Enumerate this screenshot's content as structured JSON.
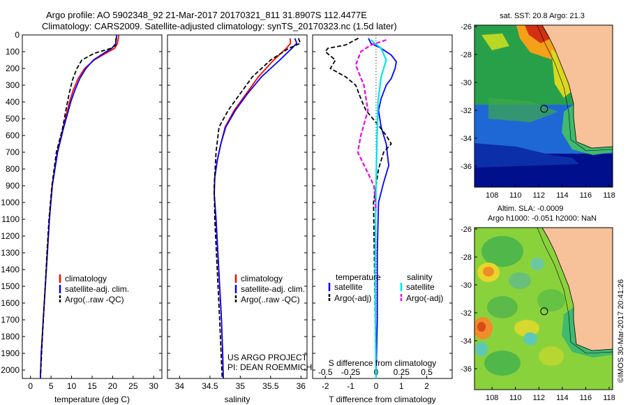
{
  "title": {
    "line1": "Argo profile: AO 5902348_92 21-Mar-2017 20170321_811 31.8907S 112.4477E",
    "line2": "Climatology: CARS2009. Satellite-adjusted climatology: synTS_20170323.nc (1.5d later)"
  },
  "colors": {
    "climatology": "#ff0000",
    "satellite": "#0000ff",
    "argo": "#000000",
    "salinity_satellite": "#00e5e5",
    "salinity_argo": "#ee00ee",
    "land": "#f7c29a",
    "sst_deep": "#000f8c"
  },
  "chart_data": [
    {
      "type": "line",
      "id": "temperature",
      "xlabel": "temperature (deg C)",
      "ylabel": "",
      "xlim": [
        -2,
        32
      ],
      "ylim": [
        2050,
        0
      ],
      "xticks": [
        0,
        5,
        10,
        15,
        20,
        25,
        30
      ],
      "yticks": [
        0,
        100,
        200,
        300,
        400,
        500,
        600,
        700,
        800,
        900,
        1000,
        1100,
        1200,
        1300,
        1400,
        1500,
        1600,
        1700,
        1800,
        1900,
        2000
      ],
      "legend": [
        "climatology",
        "satellite-adj. clim.",
        "Argo(..raw -QC)"
      ],
      "series": [
        {
          "name": "climatology",
          "x": [
            21.5,
            21.2,
            20.5,
            18.3,
            15.5,
            13.2,
            11.6,
            10.4,
            9.5,
            8.7,
            7.9,
            6.5,
            5.3,
            4.6,
            4.1,
            3.6,
            3.1,
            2.6,
            2.4
          ],
          "y": [
            0,
            50,
            80,
            110,
            150,
            200,
            260,
            330,
            400,
            480,
            560,
            700,
            900,
            1100,
            1300,
            1500,
            1700,
            1900,
            2050
          ]
        },
        {
          "name": "satellite-adj. clim.",
          "x": [
            21.0,
            20.8,
            19.8,
            17.8,
            15.3,
            13.5,
            12.0,
            10.8,
            9.8,
            8.9,
            8.0,
            6.6,
            5.3,
            4.6,
            4.1,
            3.6,
            3.1,
            2.6,
            2.4
          ],
          "y": [
            0,
            50,
            80,
            110,
            150,
            200,
            260,
            330,
            400,
            480,
            560,
            700,
            900,
            1100,
            1300,
            1500,
            1700,
            1900,
            2050
          ]
        },
        {
          "name": "Argo(..raw -QC)",
          "x": [
            20.8,
            20.8,
            19.6,
            15.5,
            12.5,
            11.3,
            10.2,
            9.4,
            8.6,
            7.8,
            6.3,
            5.2,
            4.5,
            4.0,
            3.6,
            3.1,
            2.7,
            2.4
          ],
          "y": [
            20,
            60,
            80,
            110,
            150,
            200,
            270,
            350,
            450,
            560,
            700,
            900,
            1100,
            1300,
            1500,
            1700,
            1900,
            2040
          ]
        }
      ]
    },
    {
      "type": "line",
      "id": "salinity",
      "xlabel": "salinity",
      "ylabel": "",
      "xlim": [
        33.8,
        36.1
      ],
      "ylim": [
        2050,
        0
      ],
      "xticks": [
        34,
        34.5,
        35,
        35.5,
        36
      ],
      "legend": [
        "climatology",
        "satellite-adj. clim.",
        "Argo(..raw -QC)"
      ],
      "annotation": [
        "US ARGO PROJECT",
        "PI: DEAN ROEMMICH"
      ],
      "series": [
        {
          "name": "climatology",
          "x": [
            35.82,
            35.83,
            35.76,
            35.55,
            35.3,
            35.1,
            34.9,
            34.75,
            34.68,
            34.62,
            34.58,
            34.57,
            34.6,
            34.63,
            34.66,
            34.69,
            34.71,
            34.72
          ],
          "y": [
            20,
            50,
            80,
            150,
            250,
            350,
            450,
            550,
            650,
            750,
            850,
            950,
            1100,
            1300,
            1500,
            1700,
            1900,
            2050
          ]
        },
        {
          "name": "satellite-adj. clim.",
          "x": [
            35.9,
            35.93,
            35.85,
            35.65,
            35.35,
            35.12,
            34.92,
            34.76,
            34.68,
            34.62,
            34.58,
            34.57,
            34.6,
            34.63,
            34.66,
            34.69,
            34.71,
            34.72
          ],
          "y": [
            20,
            50,
            80,
            150,
            250,
            350,
            450,
            550,
            650,
            750,
            850,
            950,
            1100,
            1300,
            1500,
            1700,
            1900,
            2050
          ]
        },
        {
          "name": "Argo(..raw -QC)",
          "x": [
            35.96,
            35.99,
            35.8,
            35.5,
            35.2,
            35.0,
            34.8,
            34.65,
            34.6,
            34.57,
            34.58,
            34.62,
            34.66,
            34.7
          ],
          "y": [
            20,
            50,
            80,
            150,
            250,
            350,
            450,
            550,
            700,
            900,
            1100,
            1400,
            1700,
            2040
          ]
        }
      ]
    },
    {
      "type": "line",
      "id": "difference",
      "xlabel": "T difference from climatology",
      "xlabel2": "S difference from climatology",
      "xlim": [
        -2.5,
        3.0
      ],
      "ylim": [
        2050,
        0
      ],
      "xticks": [
        -2,
        -1,
        0,
        1,
        2
      ],
      "xticks_s": [
        -0.5,
        -0.25,
        0,
        0.25,
        0.5
      ],
      "legend_headers": [
        "temperature",
        "salinity"
      ],
      "legend": [
        "satellite",
        "Argo(-adj)",
        "satellite",
        "Argo(-adj)"
      ],
      "series": [
        {
          "name": "temperature satellite",
          "x": [
            -0.3,
            -0.2,
            0.2,
            0.6,
            0.8,
            0.75,
            0.6,
            0.4,
            0.2,
            0.1,
            0.2,
            0.4,
            0.5,
            0.3,
            0.1,
            0.05,
            0.05,
            0.0
          ],
          "y": [
            20,
            50,
            80,
            120,
            160,
            200,
            260,
            300,
            380,
            450,
            550,
            650,
            780,
            880,
            1000,
            1300,
            1700,
            2050
          ]
        },
        {
          "name": "temperature Argo(-adj)",
          "x": [
            -0.7,
            -1.2,
            -1.9,
            -2.0,
            -1.6,
            -1.8,
            -1.2,
            -0.8,
            -0.6,
            -0.4,
            0.1,
            0.4,
            0.6,
            0.3,
            0.1,
            -0.1,
            -0.05,
            0.0
          ],
          "y": [
            20,
            60,
            80,
            100,
            150,
            200,
            250,
            300,
            380,
            450,
            540,
            600,
            650,
            700,
            800,
            1000,
            1500,
            2040
          ]
        },
        {
          "name": "salinity satellite",
          "x": [
            -0.05,
            0.05,
            0.1,
            0.05,
            0.02,
            0.01,
            0.0,
            -0.01,
            0.0
          ],
          "y": [
            30,
            80,
            150,
            250,
            400,
            600,
            900,
            1400,
            2050
          ]
        },
        {
          "name": "salinity Argo(-adj)",
          "x": [
            0.1,
            -0.05,
            -0.15,
            -0.2,
            -0.12,
            -0.08,
            -0.15,
            -0.18,
            -0.1,
            -0.02,
            0.0
          ],
          "y": [
            30,
            60,
            100,
            180,
            300,
            450,
            600,
            700,
            800,
            900,
            1050
          ]
        }
      ]
    }
  ],
  "maps": {
    "sst": {
      "title": "sat. SST: 20.8 Argo: 21.3",
      "yticks": [
        -26,
        -28,
        -30,
        -32,
        -34,
        -36
      ],
      "xticks": [
        108,
        110,
        112,
        114,
        116,
        118
      ],
      "float_lon": 112.45,
      "float_lat": -31.89
    },
    "sla": {
      "title1": "Altim. SLA: -0.0009",
      "title2": "Argo h1000: -0.051 h2000: NaN",
      "yticks": [
        -26,
        -28,
        -30,
        -32,
        -34,
        -36
      ],
      "xticks": [
        108,
        110,
        112,
        114,
        116,
        118
      ],
      "float_lon": 112.45,
      "float_lat": -31.89
    }
  },
  "credit": "©IMOS 30-Mar-2017 20:41:26"
}
